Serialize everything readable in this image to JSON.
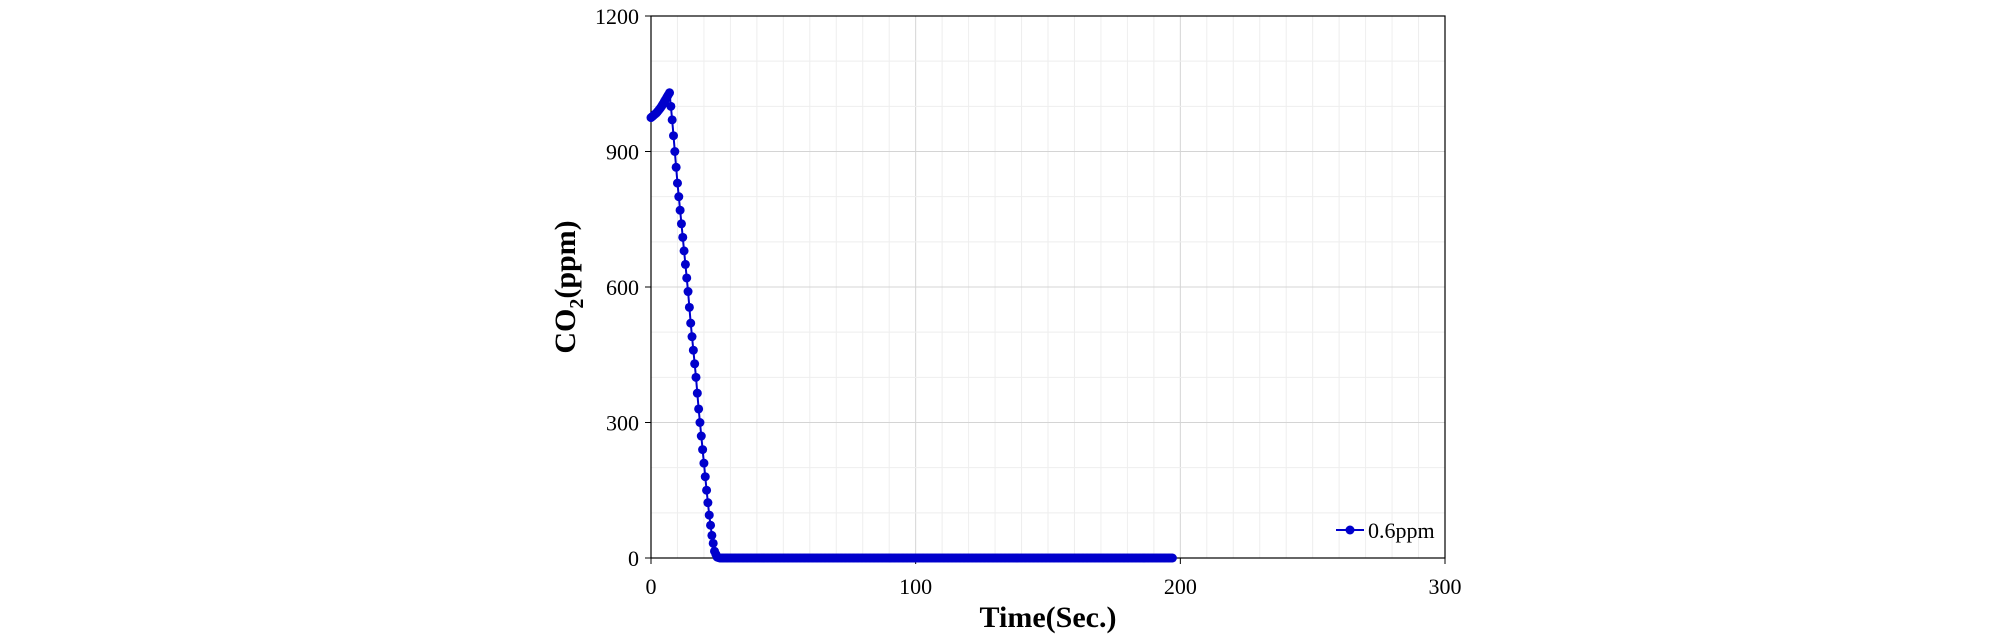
{
  "chart_data": {
    "type": "line",
    "xlabel": "Time(Sec.)",
    "ylabel_main": "CO",
    "ylabel_sub": "2",
    "ylabel_unit": "(ppm)",
    "xlim": [
      0,
      300
    ],
    "ylim": [
      0,
      1200
    ],
    "x_ticks": [
      "0",
      "100",
      "200",
      "300"
    ],
    "y_ticks": [
      "0",
      "300",
      "600",
      "900",
      "1200"
    ],
    "grid": true,
    "legend_position": "bottom-right",
    "series": [
      {
        "name": "0.6ppm",
        "color": "#0000cc",
        "x": [
          0,
          1,
          2,
          3,
          4,
          5,
          6,
          7,
          8,
          9,
          10,
          11,
          12,
          13,
          14,
          15,
          16,
          17,
          18,
          19,
          20,
          21,
          22,
          23,
          24,
          25,
          26,
          27,
          28,
          29,
          30,
          40,
          50,
          60,
          70,
          80,
          90,
          100,
          110,
          120,
          130,
          140,
          150,
          160,
          170,
          180,
          190,
          197
        ],
        "y": [
          975,
          980,
          985,
          992,
          1000,
          1010,
          1020,
          1030,
          970,
          900,
          830,
          770,
          710,
          650,
          590,
          520,
          460,
          400,
          330,
          270,
          210,
          150,
          95,
          50,
          15,
          2,
          0,
          0,
          0,
          0,
          0,
          0,
          0,
          0,
          0,
          0,
          0,
          0,
          0,
          0,
          0,
          0,
          0,
          0,
          0,
          0,
          0,
          0
        ]
      }
    ]
  }
}
